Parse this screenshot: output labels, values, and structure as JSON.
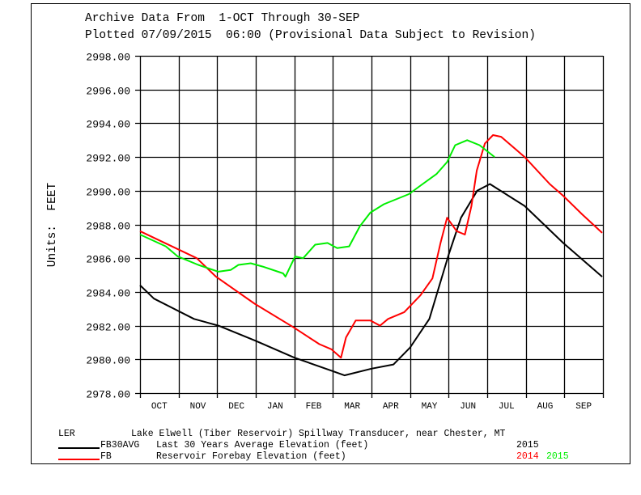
{
  "chart_data": {
    "type": "line",
    "title_lines": [
      "Archive Data From  1-OCT Through 30-SEP",
      "Plotted 07/09/2015  06:00 (Provisional Data Subject to Revision)"
    ],
    "ylabel": "Units:  FEET",
    "ylim": [
      2978,
      2998
    ],
    "yticks": [
      "2978.00",
      "2980.00",
      "2982.00",
      "2984.00",
      "2986.00",
      "2988.00",
      "2990.00",
      "2992.00",
      "2994.00",
      "2996.00",
      "2998.00"
    ],
    "x_unit": "months since 1-OCT",
    "xlim": [
      0,
      12
    ],
    "categories": [
      "OCT",
      "NOV",
      "DEC",
      "JAN",
      "FEB",
      "MAR",
      "APR",
      "MAY",
      "JUN",
      "JUL",
      "AUG",
      "SEP"
    ],
    "grid": true,
    "series": [
      {
        "name": "FB30AVG 2015",
        "color": "#000000",
        "x": [
          0,
          0.36,
          1.4,
          2.03,
          3.0,
          4.0,
          5.0,
          5.3,
          6.0,
          6.57,
          7.0,
          7.5,
          8.0,
          8.32,
          8.74,
          9.07,
          9.97,
          10.97,
          11.98
        ],
        "y": [
          2984.4,
          2983.6,
          2982.4,
          2982.0,
          2981.1,
          2980.1,
          2979.3,
          2979.05,
          2979.45,
          2979.7,
          2980.7,
          2982.4,
          2986.2,
          2988.4,
          2990.0,
          2990.4,
          2989.1,
          2986.9,
          2984.9
        ]
      },
      {
        "name": "FB 2014",
        "color": "#ff0000",
        "x": [
          0,
          1.47,
          1.97,
          2.97,
          3.98,
          4.65,
          4.96,
          5.21,
          5.34,
          5.59,
          5.97,
          6.22,
          6.43,
          6.85,
          7.27,
          7.58,
          7.79,
          7.96,
          8.21,
          8.42,
          8.59,
          8.73,
          8.94,
          9.15,
          9.36,
          9.97,
          10.62,
          10.97,
          11.46,
          11.98
        ],
        "y": [
          2987.6,
          2986.0,
          2984.9,
          2983.3,
          2981.9,
          2980.9,
          2980.6,
          2980.1,
          2981.3,
          2982.3,
          2982.3,
          2982.0,
          2982.4,
          2982.8,
          2983.8,
          2984.8,
          2986.9,
          2988.4,
          2987.6,
          2987.4,
          2989.1,
          2991.2,
          2992.8,
          2993.3,
          2993.2,
          2992.0,
          2990.4,
          2989.7,
          2988.6,
          2987.5
        ]
      },
      {
        "name": "FB 2015",
        "color": "#00ee00",
        "x": [
          0,
          0.67,
          0.98,
          1.51,
          2.03,
          2.35,
          2.55,
          2.87,
          3.18,
          3.71,
          3.77,
          4.02,
          4.23,
          4.54,
          4.86,
          5.11,
          5.42,
          5.7,
          5.97,
          6.32,
          6.97,
          7.27,
          7.69,
          7.96,
          8.17,
          8.48,
          8.8,
          9.19
        ],
        "y": [
          2987.4,
          2986.7,
          2986.1,
          2985.6,
          2985.2,
          2985.3,
          2985.6,
          2985.7,
          2985.5,
          2985.1,
          2984.9,
          2986.1,
          2986.0,
          2986.8,
          2986.9,
          2986.6,
          2986.7,
          2987.9,
          2988.7,
          2989.2,
          2989.8,
          2990.3,
          2991.0,
          2991.7,
          2992.7,
          2993.0,
          2992.7,
          2992.0
        ]
      }
    ],
    "legend": {
      "station_code": "LER",
      "station_name": "Lake Elwell (Tiber Reservoir) Spillway Transducer, near Chester, MT",
      "entries": [
        {
          "code": "FB30AVG",
          "description": "Last 30 Years Average Elevation (feet)",
          "color": "#000000",
          "years": [
            {
              "label": "2015",
              "color": "#000000"
            }
          ]
        },
        {
          "code": "FB",
          "description": "Reservoir Forebay Elevation (feet)",
          "color": "#ff0000",
          "years": [
            {
              "label": "2014",
              "color": "#ff0000"
            },
            {
              "label": "2015",
              "color": "#00ee00"
            }
          ]
        }
      ]
    }
  }
}
